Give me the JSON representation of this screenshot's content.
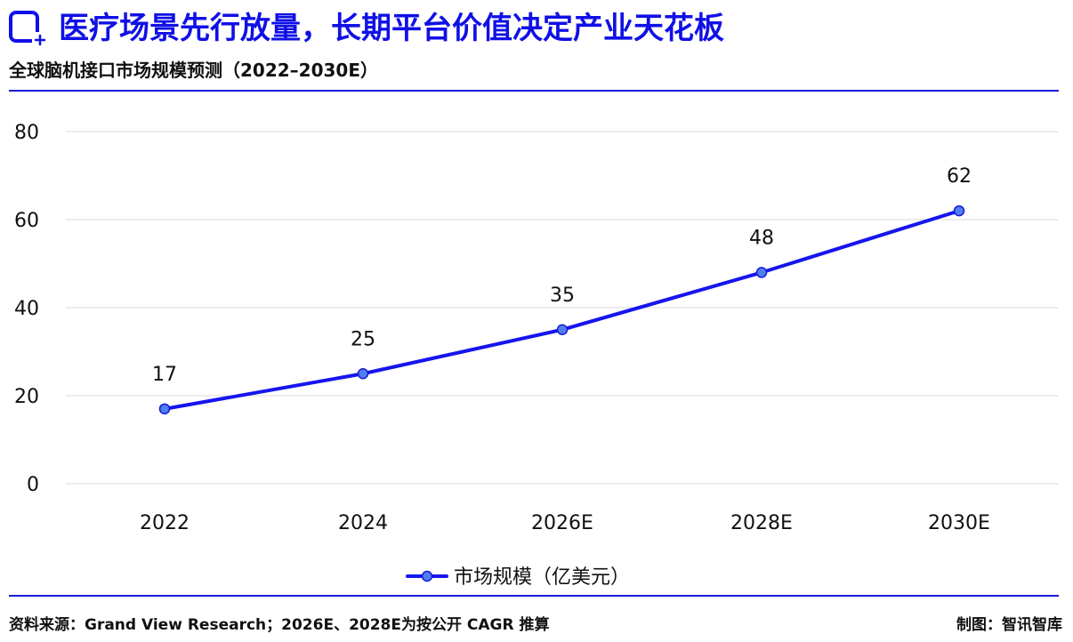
{
  "header": {
    "title": "医疗场景先行放量，长期平台价值决定产业天花板",
    "subtitle": "全球脑机接口市场规模预测（2022–2030E）"
  },
  "chart_data": {
    "type": "line",
    "categories": [
      "2022",
      "2024",
      "2026E",
      "2028E",
      "2030E"
    ],
    "series": [
      {
        "name": "市场规模（亿美元）",
        "values": [
          17,
          25,
          35,
          48,
          62
        ]
      }
    ],
    "yticks": [
      "0",
      "20",
      "40",
      "60",
      "80"
    ],
    "ylim": [
      0,
      80
    ],
    "grid": true,
    "legend_position": "bottom-center",
    "line_color": "#1515ee",
    "marker_color": "#4f7ef0"
  },
  "footer": {
    "source": "资料来源：Grand View Research；2026E、2028E为按公开 CAGR 推算",
    "credit": "制图：智讯智库"
  },
  "colors": {
    "accent": "#1010e6",
    "rule": "#1a1ad8",
    "grid": "#d9d9d9"
  }
}
